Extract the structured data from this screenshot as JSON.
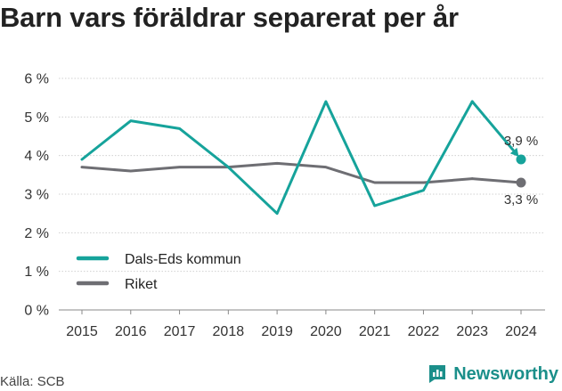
{
  "title": "Barn vars föräldrar separerat per år",
  "source": "Källa: SCB",
  "brand": "Newsworthy",
  "colors": {
    "series1": "#16a39b",
    "series2": "#6e6e73",
    "grid": "#d0d0d0",
    "brand": "#1b8f8a"
  },
  "chart_data": {
    "type": "line",
    "title": "Barn vars föräldrar separerat per år",
    "x": [
      2015,
      2016,
      2017,
      2018,
      2019,
      2020,
      2021,
      2022,
      2023,
      2024
    ],
    "xlabel": "",
    "ylabel": "",
    "ylim": [
      0,
      6
    ],
    "yticks": [
      "0 %",
      "1 %",
      "2 %",
      "3 %",
      "4 %",
      "5 %",
      "6 %"
    ],
    "grid": "horizontal",
    "legend": "bottom-left",
    "series": [
      {
        "name": "Dals-Eds kommun",
        "values": [
          3.9,
          4.9,
          4.7,
          3.7,
          2.5,
          5.4,
          2.7,
          3.1,
          5.4,
          3.9
        ],
        "end_label": "3,9 %"
      },
      {
        "name": "Riket",
        "values": [
          3.7,
          3.6,
          3.7,
          3.7,
          3.8,
          3.7,
          3.3,
          3.3,
          3.4,
          3.3
        ],
        "end_label": "3,3 %"
      }
    ]
  }
}
